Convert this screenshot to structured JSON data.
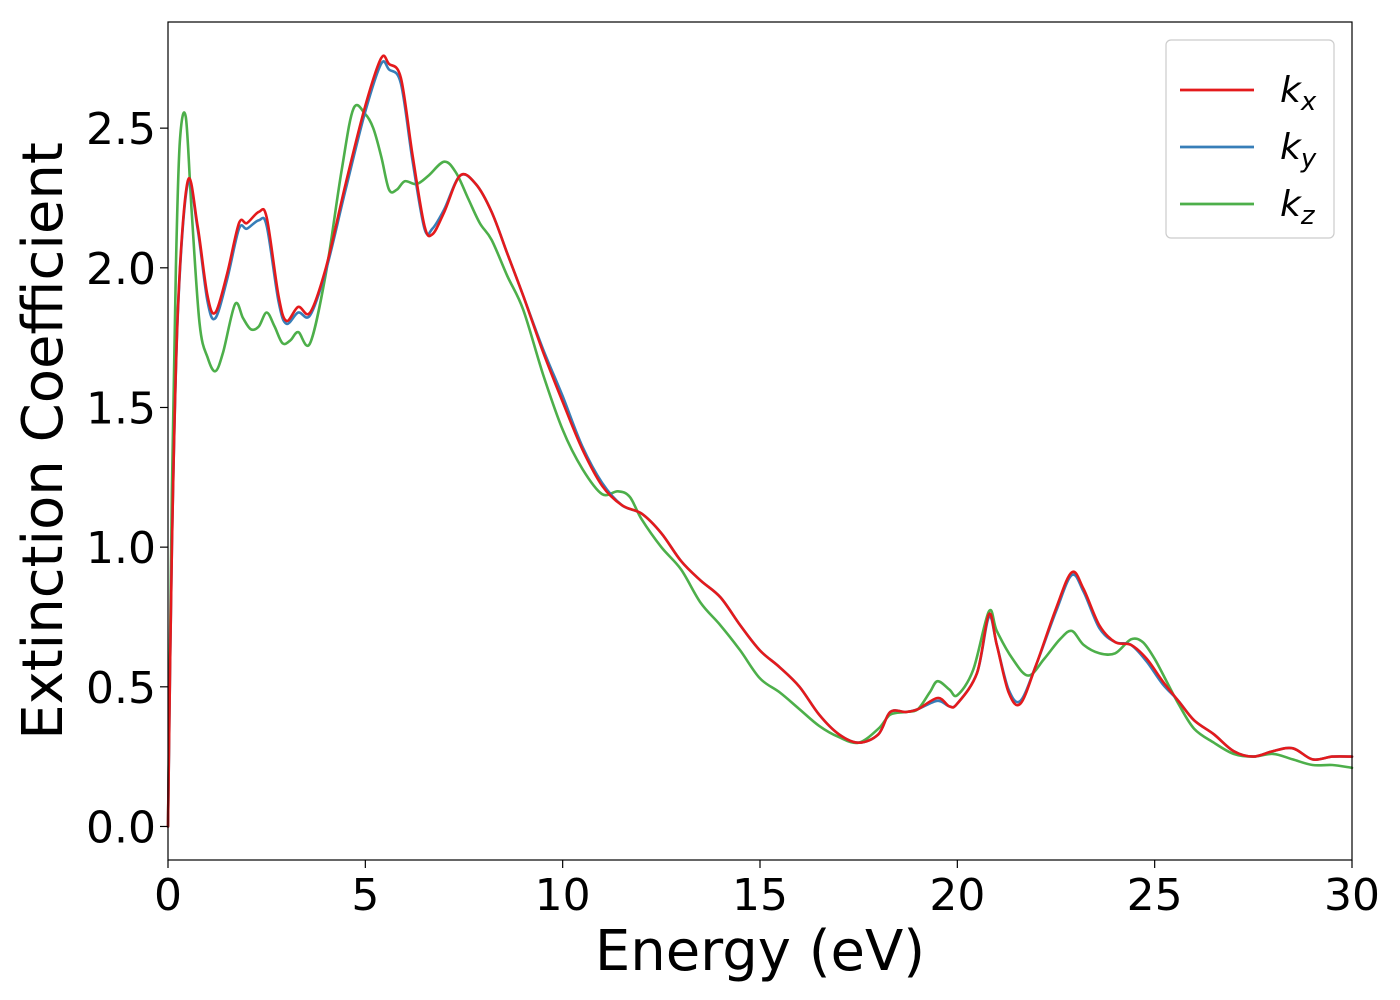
{
  "chart_data": {
    "type": "line",
    "xlabel": "Energy (eV)",
    "ylabel": "Extinction Coefficient",
    "xlim": [
      0,
      30
    ],
    "ylim": [
      -0.12,
      2.88
    ],
    "xticks": [
      0,
      5,
      10,
      15,
      20,
      25,
      30
    ],
    "xtick_labels": [
      "0",
      "5",
      "10",
      "15",
      "20",
      "25",
      "30"
    ],
    "yticks": [
      0.0,
      0.5,
      1.0,
      1.5,
      2.0,
      2.5
    ],
    "ytick_labels": [
      "0.0",
      "0.5",
      "1.0",
      "1.5",
      "2.0",
      "2.5"
    ],
    "grid": false,
    "legend_position": "top-right",
    "series": [
      {
        "name": "k_x",
        "label_base": "k",
        "label_sub": "x",
        "color": "#e41a1c",
        "x": [
          0,
          0.1,
          0.25,
          0.5,
          0.75,
          1.0,
          1.2,
          1.5,
          1.8,
          2.0,
          2.3,
          2.5,
          2.8,
          3.0,
          3.3,
          3.6,
          4.0,
          4.5,
          5.0,
          5.4,
          5.6,
          5.9,
          6.2,
          6.5,
          6.7,
          7.0,
          7.4,
          7.8,
          8.2,
          8.6,
          9.0,
          9.5,
          10.0,
          10.5,
          11.0,
          11.5,
          12.0,
          12.5,
          13.0,
          13.5,
          14.0,
          14.5,
          15.0,
          15.5,
          16.0,
          16.5,
          17.0,
          17.5,
          18.0,
          18.3,
          18.7,
          19.0,
          19.5,
          19.8,
          20.0,
          20.5,
          20.8,
          21.0,
          21.3,
          21.6,
          22.0,
          22.5,
          22.9,
          23.2,
          23.6,
          24.0,
          24.4,
          24.8,
          25.2,
          25.6,
          26.0,
          26.5,
          27.0,
          27.5,
          28.0,
          28.5,
          29.0,
          29.5,
          30.0
        ],
        "y": [
          0.0,
          1.0,
          1.85,
          2.31,
          2.15,
          1.9,
          1.84,
          1.98,
          2.16,
          2.16,
          2.2,
          2.18,
          1.9,
          1.81,
          1.86,
          1.84,
          2.0,
          2.3,
          2.58,
          2.75,
          2.73,
          2.68,
          2.4,
          2.15,
          2.12,
          2.2,
          2.33,
          2.3,
          2.2,
          2.05,
          1.9,
          1.7,
          1.52,
          1.35,
          1.22,
          1.15,
          1.12,
          1.05,
          0.95,
          0.88,
          0.82,
          0.72,
          0.63,
          0.57,
          0.5,
          0.4,
          0.33,
          0.3,
          0.33,
          0.41,
          0.41,
          0.42,
          0.46,
          0.43,
          0.44,
          0.55,
          0.76,
          0.65,
          0.48,
          0.44,
          0.58,
          0.78,
          0.91,
          0.85,
          0.72,
          0.66,
          0.65,
          0.6,
          0.52,
          0.45,
          0.38,
          0.33,
          0.27,
          0.25,
          0.27,
          0.28,
          0.24,
          0.25,
          0.25
        ]
      },
      {
        "name": "k_y",
        "label_base": "k",
        "label_sub": "y",
        "color": "#377eb8",
        "x": [
          0,
          0.1,
          0.25,
          0.5,
          0.75,
          1.0,
          1.2,
          1.5,
          1.8,
          2.0,
          2.3,
          2.5,
          2.8,
          3.0,
          3.3,
          3.6,
          4.0,
          4.5,
          5.0,
          5.4,
          5.6,
          5.9,
          6.2,
          6.5,
          6.7,
          7.0,
          7.4,
          7.8,
          8.2,
          8.6,
          9.0,
          9.5,
          10.0,
          10.5,
          11.0,
          11.5,
          12.0,
          12.5,
          13.0,
          13.5,
          14.0,
          14.5,
          15.0,
          15.5,
          16.0,
          16.5,
          17.0,
          17.5,
          18.0,
          18.3,
          18.7,
          19.0,
          19.5,
          19.8,
          20.0,
          20.5,
          20.8,
          21.0,
          21.3,
          21.6,
          22.0,
          22.5,
          22.9,
          23.2,
          23.6,
          24.0,
          24.4,
          24.8,
          25.2,
          25.6,
          26.0,
          26.5,
          27.0,
          27.5,
          28.0,
          28.5,
          29.0,
          29.5,
          30.0
        ],
        "y": [
          0.0,
          1.0,
          1.84,
          2.3,
          2.14,
          1.88,
          1.82,
          1.96,
          2.14,
          2.14,
          2.17,
          2.15,
          1.88,
          1.8,
          1.84,
          1.83,
          1.99,
          2.28,
          2.56,
          2.73,
          2.71,
          2.66,
          2.38,
          2.14,
          2.14,
          2.21,
          2.33,
          2.3,
          2.2,
          2.05,
          1.9,
          1.71,
          1.54,
          1.36,
          1.23,
          1.15,
          1.12,
          1.05,
          0.95,
          0.88,
          0.82,
          0.72,
          0.63,
          0.57,
          0.5,
          0.4,
          0.33,
          0.3,
          0.33,
          0.41,
          0.41,
          0.42,
          0.45,
          0.43,
          0.44,
          0.55,
          0.75,
          0.65,
          0.49,
          0.45,
          0.58,
          0.77,
          0.9,
          0.84,
          0.71,
          0.66,
          0.65,
          0.59,
          0.51,
          0.45,
          0.38,
          0.33,
          0.27,
          0.25,
          0.27,
          0.28,
          0.24,
          0.25,
          0.25
        ]
      },
      {
        "name": "k_z",
        "label_base": "k",
        "label_sub": "z",
        "color": "#4daf4a",
        "x": [
          0,
          0.1,
          0.2,
          0.3,
          0.45,
          0.6,
          0.8,
          1.0,
          1.2,
          1.4,
          1.7,
          1.9,
          2.1,
          2.3,
          2.5,
          2.7,
          2.9,
          3.1,
          3.3,
          3.6,
          4.0,
          4.4,
          4.7,
          5.0,
          5.2,
          5.4,
          5.6,
          5.8,
          6.0,
          6.3,
          6.6,
          7.0,
          7.3,
          7.6,
          7.9,
          8.2,
          8.6,
          9.0,
          9.5,
          10.0,
          10.5,
          11.0,
          11.4,
          11.7,
          12.0,
          12.5,
          13.0,
          13.5,
          14.0,
          14.5,
          15.0,
          15.5,
          16.0,
          16.5,
          17.0,
          17.5,
          18.0,
          18.3,
          18.7,
          19.0,
          19.3,
          19.5,
          19.8,
          20.0,
          20.4,
          20.8,
          21.0,
          21.4,
          21.8,
          22.2,
          22.6,
          22.9,
          23.2,
          23.6,
          24.0,
          24.4,
          24.7,
          25.0,
          25.3,
          25.6,
          26.0,
          26.5,
          27.0,
          27.5,
          28.0,
          28.5,
          29.0,
          29.5,
          30.0
        ],
        "y": [
          0.0,
          1.2,
          2.0,
          2.45,
          2.54,
          2.2,
          1.8,
          1.68,
          1.63,
          1.7,
          1.87,
          1.82,
          1.78,
          1.79,
          1.84,
          1.79,
          1.73,
          1.74,
          1.77,
          1.73,
          1.98,
          2.35,
          2.57,
          2.55,
          2.5,
          2.4,
          2.28,
          2.28,
          2.31,
          2.3,
          2.33,
          2.38,
          2.34,
          2.25,
          2.16,
          2.1,
          1.97,
          1.85,
          1.62,
          1.42,
          1.28,
          1.19,
          1.2,
          1.18,
          1.1,
          1.0,
          0.92,
          0.8,
          0.72,
          0.63,
          0.53,
          0.48,
          0.42,
          0.36,
          0.32,
          0.3,
          0.35,
          0.4,
          0.41,
          0.42,
          0.48,
          0.52,
          0.49,
          0.47,
          0.56,
          0.77,
          0.7,
          0.6,
          0.54,
          0.6,
          0.67,
          0.7,
          0.65,
          0.62,
          0.62,
          0.67,
          0.66,
          0.6,
          0.52,
          0.44,
          0.35,
          0.3,
          0.26,
          0.25,
          0.26,
          0.24,
          0.22,
          0.22,
          0.21
        ]
      }
    ]
  }
}
